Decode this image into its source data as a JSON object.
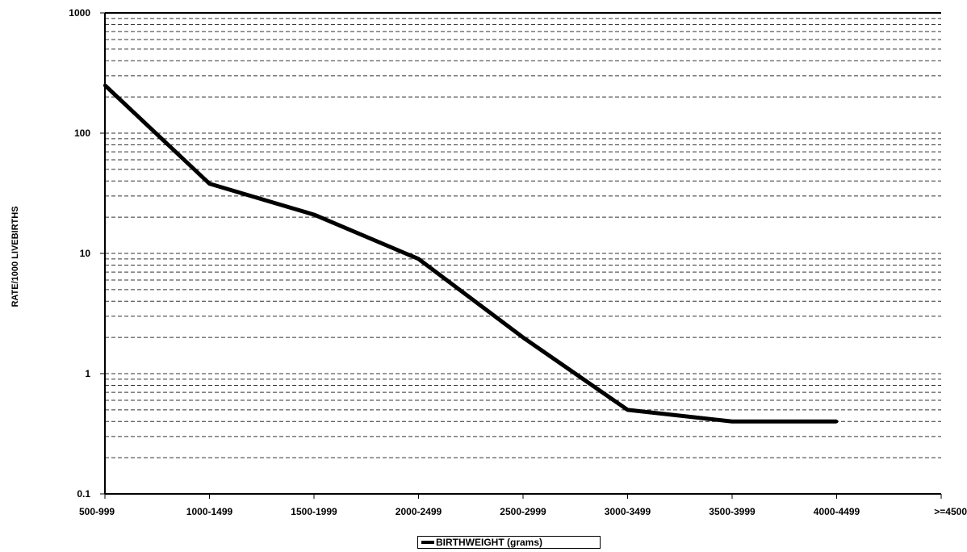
{
  "chart_data": {
    "type": "line",
    "title": "",
    "xlabel": "",
    "ylabel": "RATE/1000 LIVEBIRTHS",
    "yscale": "log",
    "ylim": [
      0.1,
      1000
    ],
    "y_ticks": [
      0.1,
      1,
      10,
      100,
      1000
    ],
    "y_tick_labels": [
      "0.1",
      "1",
      "10",
      "100",
      "1000"
    ],
    "grid": "horizontal dashed",
    "categories": [
      "500-999",
      "1000-1499",
      "1500-1999",
      "2000-2499",
      "2500-2999",
      "3000-3499",
      "3500-3999",
      "4000-4499",
      ">=4500"
    ],
    "series": [
      {
        "name": "BIRTHWEIGHT (grams)",
        "values": [
          250,
          38,
          21,
          9,
          2,
          0.5,
          0.4,
          0.4,
          null
        ],
        "color": "#000000"
      }
    ],
    "legend": {
      "position": "bottom-center",
      "label": "BIRTHWEIGHT (grams)"
    }
  }
}
